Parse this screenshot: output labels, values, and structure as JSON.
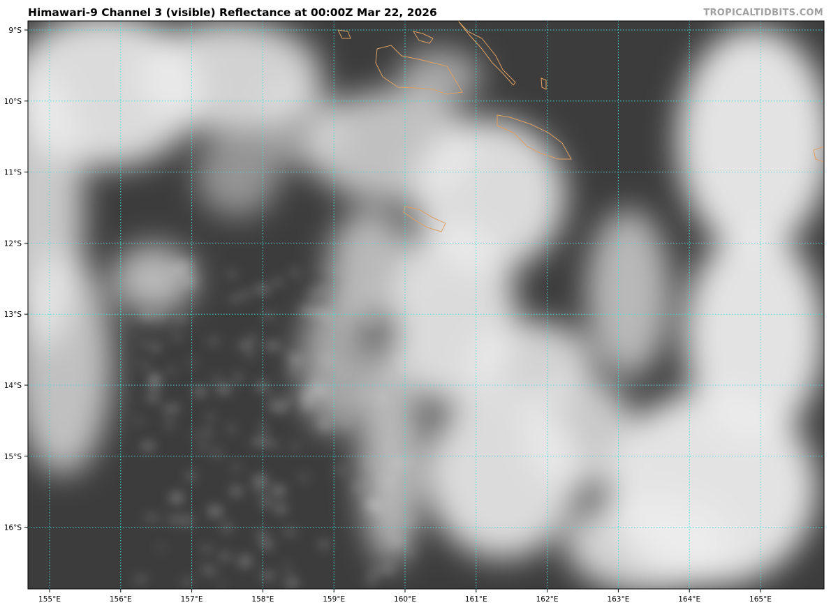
{
  "title": "Himawari-9 Channel 3 (visible) Reflectance at 00:00Z Mar 22, 2026",
  "credit": "TROPICALTIDBITS.COM",
  "map": {
    "latitudes": [
      "9°S",
      "10°S",
      "11°S",
      "12°S",
      "13°S",
      "14°S",
      "15°S",
      "16°S"
    ],
    "longitudes": [
      "155°E",
      "156°E",
      "157°E",
      "158°E",
      "159°E",
      "160°E",
      "161°E",
      "162°E",
      "163°E",
      "164°E",
      "165°E"
    ],
    "colors": {
      "grid": "#40e0e0",
      "coastline": "#e0a060",
      "ocean": "#3c3c3c",
      "cloud": "#f0f0f0"
    }
  }
}
